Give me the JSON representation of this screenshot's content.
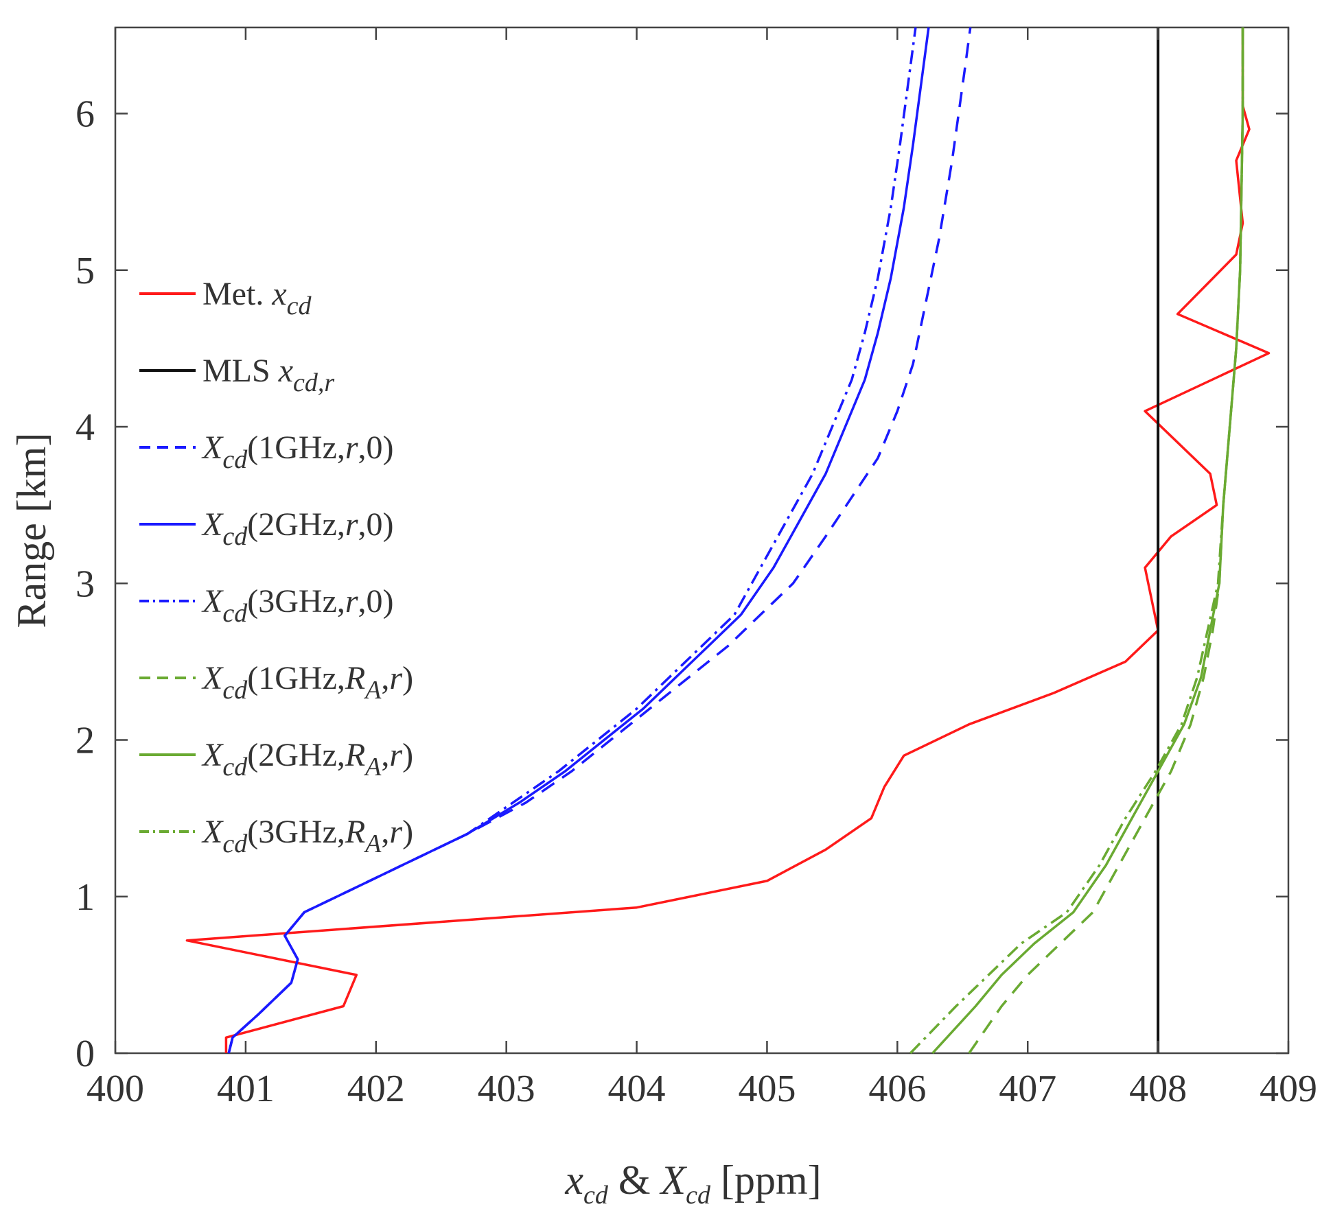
{
  "chart_data": {
    "type": "line",
    "xlim": [
      400,
      409
    ],
    "ylim": [
      0,
      6.55
    ],
    "xticks": [
      400,
      401,
      402,
      403,
      404,
      405,
      406,
      407,
      408,
      409
    ],
    "yticks": [
      0,
      1,
      2,
      3,
      4,
      5,
      6
    ],
    "ylabel": "Range [km]",
    "xlabel": {
      "part1": "x",
      "sub1": "cd",
      "amp": " & ",
      "part2": "X",
      "sub2": "cd",
      "unit": " [ppm]"
    },
    "legend_position": "left-middle",
    "series": [
      {
        "key": "met",
        "name": "Met. x_cd",
        "color": "#ff1a1a",
        "style": "solid",
        "points": [
          [
            400.85,
            0.0
          ],
          [
            400.85,
            0.1
          ],
          [
            401.75,
            0.3
          ],
          [
            401.85,
            0.5
          ],
          [
            400.55,
            0.72
          ],
          [
            404.0,
            0.93
          ],
          [
            405.0,
            1.1
          ],
          [
            405.45,
            1.3
          ],
          [
            405.8,
            1.5
          ],
          [
            405.9,
            1.7
          ],
          [
            406.05,
            1.9
          ],
          [
            406.55,
            2.1
          ],
          [
            407.2,
            2.3
          ],
          [
            407.75,
            2.5
          ],
          [
            408.0,
            2.7
          ],
          [
            407.9,
            3.1
          ],
          [
            408.1,
            3.3
          ],
          [
            408.45,
            3.5
          ],
          [
            408.4,
            3.7
          ],
          [
            407.9,
            4.1
          ],
          [
            408.85,
            4.47
          ],
          [
            408.15,
            4.72
          ],
          [
            408.6,
            5.1
          ],
          [
            408.65,
            5.3
          ],
          [
            408.6,
            5.7
          ],
          [
            408.7,
            5.9
          ],
          [
            408.65,
            6.05
          ],
          [
            408.65,
            6.55
          ]
        ]
      },
      {
        "key": "mls",
        "name": "MLS x_cd,r",
        "color": "#111111",
        "style": "solid",
        "points": [
          [
            408.0,
            0.0
          ],
          [
            408.0,
            6.55
          ]
        ]
      },
      {
        "key": "b1",
        "name": "X_cd(1GHz,r,0)",
        "color": "#1a1aff",
        "style": "dashed",
        "points": [
          [
            400.87,
            0.0
          ],
          [
            400.9,
            0.1
          ],
          [
            401.1,
            0.25
          ],
          [
            401.35,
            0.45
          ],
          [
            401.4,
            0.6
          ],
          [
            401.3,
            0.75
          ],
          [
            401.45,
            0.9
          ],
          [
            401.7,
            1.0
          ],
          [
            402.2,
            1.2
          ],
          [
            402.7,
            1.4
          ],
          [
            403.15,
            1.6
          ],
          [
            403.5,
            1.8
          ],
          [
            403.8,
            2.0
          ],
          [
            404.1,
            2.2
          ],
          [
            404.4,
            2.4
          ],
          [
            404.7,
            2.6
          ],
          [
            404.95,
            2.8
          ],
          [
            405.2,
            3.0
          ],
          [
            405.45,
            3.3
          ],
          [
            405.65,
            3.55
          ],
          [
            405.85,
            3.8
          ],
          [
            406.0,
            4.1
          ],
          [
            406.12,
            4.4
          ],
          [
            406.22,
            4.8
          ],
          [
            406.32,
            5.2
          ],
          [
            406.42,
            5.7
          ],
          [
            406.52,
            6.3
          ],
          [
            406.56,
            6.55
          ]
        ]
      },
      {
        "key": "b2",
        "name": "X_cd(2GHz,r,0)",
        "color": "#1a1aff",
        "style": "solid",
        "points": [
          [
            400.87,
            0.0
          ],
          [
            400.9,
            0.1
          ],
          [
            401.1,
            0.25
          ],
          [
            401.35,
            0.45
          ],
          [
            401.4,
            0.6
          ],
          [
            401.3,
            0.75
          ],
          [
            401.45,
            0.9
          ],
          [
            401.7,
            1.0
          ],
          [
            402.2,
            1.2
          ],
          [
            402.7,
            1.4
          ],
          [
            403.1,
            1.6
          ],
          [
            403.45,
            1.8
          ],
          [
            403.75,
            2.0
          ],
          [
            404.05,
            2.2
          ],
          [
            404.3,
            2.4
          ],
          [
            404.55,
            2.6
          ],
          [
            404.8,
            2.8
          ],
          [
            405.05,
            3.1
          ],
          [
            405.25,
            3.4
          ],
          [
            405.45,
            3.7
          ],
          [
            405.6,
            4.0
          ],
          [
            405.75,
            4.3
          ],
          [
            405.85,
            4.6
          ],
          [
            405.95,
            4.95
          ],
          [
            406.05,
            5.4
          ],
          [
            406.12,
            5.8
          ],
          [
            406.2,
            6.3
          ],
          [
            406.24,
            6.55
          ]
        ]
      },
      {
        "key": "b3",
        "name": "X_cd(3GHz,r,0)",
        "color": "#1a1aff",
        "style": "dashdot",
        "points": [
          [
            400.87,
            0.0
          ],
          [
            400.9,
            0.1
          ],
          [
            401.1,
            0.25
          ],
          [
            401.35,
            0.45
          ],
          [
            401.4,
            0.6
          ],
          [
            401.3,
            0.75
          ],
          [
            401.45,
            0.9
          ],
          [
            401.7,
            1.0
          ],
          [
            402.2,
            1.2
          ],
          [
            402.7,
            1.4
          ],
          [
            403.05,
            1.6
          ],
          [
            403.4,
            1.8
          ],
          [
            403.7,
            2.0
          ],
          [
            404.0,
            2.2
          ],
          [
            404.25,
            2.4
          ],
          [
            404.5,
            2.6
          ],
          [
            404.75,
            2.8
          ],
          [
            404.95,
            3.1
          ],
          [
            405.15,
            3.4
          ],
          [
            405.35,
            3.7
          ],
          [
            405.5,
            4.0
          ],
          [
            405.65,
            4.3
          ],
          [
            405.75,
            4.6
          ],
          [
            405.85,
            4.95
          ],
          [
            405.95,
            5.4
          ],
          [
            406.02,
            5.8
          ],
          [
            406.1,
            6.3
          ],
          [
            406.14,
            6.55
          ]
        ]
      },
      {
        "key": "g1",
        "name": "X_cd(1GHz,R_A,r)",
        "color": "#6aaa32",
        "style": "dashed",
        "points": [
          [
            406.55,
            0.0
          ],
          [
            406.8,
            0.3
          ],
          [
            407.0,
            0.5
          ],
          [
            407.25,
            0.7
          ],
          [
            407.5,
            0.9
          ],
          [
            407.7,
            1.2
          ],
          [
            407.9,
            1.5
          ],
          [
            408.1,
            1.8
          ],
          [
            408.25,
            2.1
          ],
          [
            408.35,
            2.4
          ],
          [
            408.42,
            2.7
          ],
          [
            408.47,
            3.0
          ],
          [
            408.5,
            3.5
          ],
          [
            408.55,
            4.0
          ],
          [
            408.6,
            4.5
          ],
          [
            408.63,
            5.0
          ],
          [
            408.64,
            5.5
          ],
          [
            408.65,
            6.0
          ],
          [
            408.65,
            6.55
          ]
        ]
      },
      {
        "key": "g2",
        "name": "X_cd(2GHz,R_A,r)",
        "color": "#6aaa32",
        "style": "solid",
        "points": [
          [
            406.27,
            0.0
          ],
          [
            406.6,
            0.3
          ],
          [
            406.8,
            0.5
          ],
          [
            407.05,
            0.7
          ],
          [
            407.35,
            0.9
          ],
          [
            407.6,
            1.2
          ],
          [
            407.8,
            1.5
          ],
          [
            408.0,
            1.8
          ],
          [
            408.2,
            2.1
          ],
          [
            408.33,
            2.4
          ],
          [
            408.4,
            2.7
          ],
          [
            408.47,
            3.0
          ],
          [
            408.5,
            3.5
          ],
          [
            408.55,
            4.0
          ],
          [
            408.6,
            4.5
          ],
          [
            408.63,
            5.0
          ],
          [
            408.64,
            5.5
          ],
          [
            408.65,
            6.0
          ],
          [
            408.65,
            6.55
          ]
        ]
      },
      {
        "key": "g3",
        "name": "X_cd(3GHz,R_A,r)",
        "color": "#6aaa32",
        "style": "dashdot",
        "points": [
          [
            406.1,
            0.0
          ],
          [
            406.45,
            0.3
          ],
          [
            406.7,
            0.5
          ],
          [
            406.95,
            0.7
          ],
          [
            407.3,
            0.9
          ],
          [
            407.55,
            1.2
          ],
          [
            407.75,
            1.5
          ],
          [
            407.98,
            1.8
          ],
          [
            408.18,
            2.1
          ],
          [
            408.3,
            2.4
          ],
          [
            408.38,
            2.7
          ],
          [
            408.46,
            3.0
          ],
          [
            408.5,
            3.5
          ],
          [
            408.55,
            4.0
          ],
          [
            408.6,
            4.5
          ],
          [
            408.63,
            5.0
          ],
          [
            408.64,
            5.5
          ],
          [
            408.65,
            6.0
          ],
          [
            408.65,
            6.55
          ]
        ]
      }
    ],
    "legend": [
      {
        "key": "met",
        "label": "Met. ",
        "var": "x",
        "sub": "cd",
        "args": []
      },
      {
        "key": "mls",
        "label": "MLS ",
        "var": "x",
        "sub": "cd,r",
        "args": []
      },
      {
        "key": "b1",
        "label": "",
        "var": "X",
        "sub": "cd",
        "args": [
          {
            "t": "(1GHz,",
            "i": false
          },
          {
            "t": "r",
            "i": true
          },
          {
            "t": ",0)",
            "i": false
          }
        ]
      },
      {
        "key": "b2",
        "label": "",
        "var": "X",
        "sub": "cd",
        "args": [
          {
            "t": "(2GHz,",
            "i": false
          },
          {
            "t": "r",
            "i": true
          },
          {
            "t": ",0)",
            "i": false
          }
        ]
      },
      {
        "key": "b3",
        "label": "",
        "var": "X",
        "sub": "cd",
        "args": [
          {
            "t": "(3GHz,",
            "i": false
          },
          {
            "t": "r",
            "i": true
          },
          {
            "t": ",0)",
            "i": false
          }
        ]
      },
      {
        "key": "g1",
        "label": "",
        "var": "X",
        "sub": "cd",
        "args": [
          {
            "t": "(1GHz,",
            "i": false
          },
          {
            "t": "R",
            "i": true
          },
          {
            "t": "A",
            "i": true,
            "sub": true
          },
          {
            "t": ",",
            "i": false
          },
          {
            "t": "r",
            "i": true
          },
          {
            "t": ")",
            "i": false
          }
        ]
      },
      {
        "key": "g2",
        "label": "",
        "var": "X",
        "sub": "cd",
        "args": [
          {
            "t": "(2GHz,",
            "i": false
          },
          {
            "t": "R",
            "i": true
          },
          {
            "t": "A",
            "i": true,
            "sub": true
          },
          {
            "t": ",",
            "i": false
          },
          {
            "t": "r",
            "i": true
          },
          {
            "t": ")",
            "i": false
          }
        ]
      },
      {
        "key": "g3",
        "label": "",
        "var": "X",
        "sub": "cd",
        "args": [
          {
            "t": "(3GHz,",
            "i": false
          },
          {
            "t": "R",
            "i": true
          },
          {
            "t": "A",
            "i": true,
            "sub": true
          },
          {
            "t": ",",
            "i": false
          },
          {
            "t": "r",
            "i": true
          },
          {
            "t": ")",
            "i": false
          }
        ]
      }
    ]
  }
}
